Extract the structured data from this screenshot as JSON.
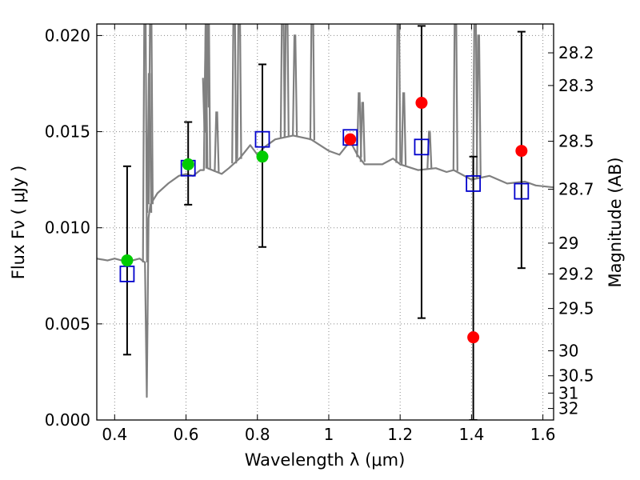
{
  "chart_data": {
    "type": "scatter",
    "xlabel": "Wavelength  λ (μm)",
    "ylabel": "Flux  Fν  ( μJy )",
    "ylabel_right": "Magnitude (AB)",
    "xlim": [
      0.35,
      1.63
    ],
    "ylim": [
      0.0,
      0.0206
    ],
    "grid": true,
    "x_ticks": [
      0.4,
      0.6,
      0.8,
      1.0,
      1.2,
      1.4,
      1.6
    ],
    "x_tick_labels": [
      "0.4",
      "0.6",
      "0.8",
      "1",
      "1.2",
      "1.4",
      "1.6"
    ],
    "y_ticks": [
      0.0,
      0.005,
      0.01,
      0.015,
      0.02
    ],
    "y_tick_labels": [
      "0.000",
      "0.005",
      "0.010",
      "0.015",
      "0.020"
    ],
    "right_ticks": [
      {
        "label": "28.2",
        "flux": 0.0191
      },
      {
        "label": "28.3",
        "flux": 0.0174
      },
      {
        "label": "28.5",
        "flux": 0.0145
      },
      {
        "label": "28.7",
        "flux": 0.012
      },
      {
        "label": "29",
        "flux": 0.0092
      },
      {
        "label": "29.2",
        "flux": 0.0076
      },
      {
        "label": "29.5",
        "flux": 0.0058
      },
      {
        "label": "30",
        "flux": 0.0036
      },
      {
        "label": "30.5",
        "flux": 0.0023
      },
      {
        "label": "31",
        "flux": 0.0014
      },
      {
        "label": "32",
        "flux": 0.0006
      }
    ],
    "colors": {
      "model": "#808080",
      "observed": "#ff0000",
      "observed_alt": "#00cc00",
      "synthetic": "#0000cc",
      "errorbar": "#000000",
      "grid": "#888888"
    },
    "series": [
      {
        "kind": "model_spectrum",
        "x": [
          0.35,
          0.38,
          0.4,
          0.42,
          0.45,
          0.47,
          0.485,
          0.49,
          0.495,
          0.5,
          0.52,
          0.55,
          0.58,
          0.6,
          0.62,
          0.64,
          0.65,
          0.655,
          0.66,
          0.7,
          0.72,
          0.75,
          0.78,
          0.8,
          0.82,
          0.85,
          0.9,
          0.95,
          1.0,
          1.03,
          1.06,
          1.08,
          1.1,
          1.15,
          1.18,
          1.2,
          1.25,
          1.3,
          1.33,
          1.35,
          1.4,
          1.45,
          1.5,
          1.55,
          1.58,
          1.63
        ],
        "y": [
          0.0084,
          0.0083,
          0.0084,
          0.0083,
          0.0083,
          0.0084,
          0.0082,
          0.0012,
          0.0105,
          0.0112,
          0.0118,
          0.0123,
          0.0127,
          0.0128,
          0.0127,
          0.013,
          0.013,
          0.021,
          0.0131,
          0.0128,
          0.0131,
          0.0136,
          0.0143,
          0.0138,
          0.0142,
          0.0146,
          0.0148,
          0.0146,
          0.014,
          0.0138,
          0.0145,
          0.0138,
          0.0133,
          0.0133,
          0.0136,
          0.0133,
          0.013,
          0.0131,
          0.0129,
          0.013,
          0.0125,
          0.0127,
          0.0123,
          0.0124,
          0.0122,
          0.0121
        ]
      },
      {
        "kind": "model_emission_lines",
        "x": [
          0.485,
          0.497,
          0.501,
          0.653,
          0.658,
          0.662,
          0.686,
          0.735,
          0.749,
          0.871,
          0.882,
          0.905,
          0.954,
          1.085,
          1.095,
          1.195,
          1.21,
          1.282,
          1.355,
          1.41,
          1.42
        ],
        "y": [
          0.023,
          0.018,
          0.023,
          0.015,
          0.023,
          0.023,
          0.016,
          0.023,
          0.023,
          0.023,
          0.023,
          0.02,
          0.023,
          0.017,
          0.0165,
          0.023,
          0.017,
          0.015,
          0.023,
          0.023,
          0.02
        ]
      },
      {
        "kind": "observed",
        "x": [
          0.435,
          0.606,
          0.814,
          1.06,
          1.26,
          1.405,
          1.54
        ],
        "y": [
          0.0083,
          0.0133,
          0.0137,
          0.0146,
          0.0165,
          0.0043,
          0.014
        ],
        "yerr_low": [
          0.0034,
          0.0112,
          0.009,
          null,
          0.0053,
          0.0,
          0.0079
        ],
        "yerr_high": [
          0.0132,
          0.0155,
          0.0185,
          null,
          0.0205,
          0.0137,
          0.0202
        ],
        "marker_color": [
          "observed_alt",
          "observed_alt",
          "observed_alt",
          "observed",
          "observed",
          "observed",
          "observed"
        ]
      },
      {
        "kind": "synthetic",
        "x": [
          0.435,
          0.606,
          0.814,
          1.06,
          1.26,
          1.405,
          1.54
        ],
        "y": [
          0.0076,
          0.0131,
          0.0146,
          0.0147,
          0.0142,
          0.0123,
          0.0119
        ]
      }
    ]
  }
}
